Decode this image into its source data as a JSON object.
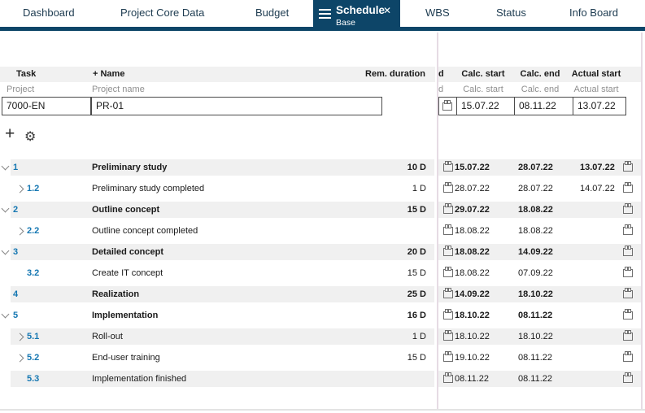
{
  "tabs": [
    {
      "label": "Dashboard"
    },
    {
      "label": "Project Core Data"
    },
    {
      "label": "Budget"
    },
    {
      "label": "Schedule",
      "sublabel": "Base",
      "active": true
    },
    {
      "label": "WBS"
    },
    {
      "label": "Status"
    },
    {
      "label": "Info Board"
    }
  ],
  "icons": {
    "close": "✕",
    "add": "+",
    "settings": "⚙"
  },
  "header": {
    "task": "Task",
    "name": "+  Name",
    "rem_duration": "Rem. duration",
    "calc_start": "Calc. start",
    "calc_end": "Calc. end",
    "actual_start": "Actual start",
    "clipped_fragment": "d",
    "sub": {
      "task": "Project",
      "name": "Project name",
      "calc_start": "Calc. start",
      "calc_end": "Calc. end",
      "actual_start": "Actual start",
      "clipped_fragment": "d"
    }
  },
  "project_row": {
    "id": "7000-EN",
    "name": "PR-01",
    "calc_start": "15.07.22",
    "calc_end": "08.11.22",
    "actual_start": "13.07.22"
  },
  "tasks": [
    {
      "num": "1",
      "name": "Preliminary study",
      "duration": "10 D",
      "calc_start": "15.07.22",
      "calc_end": "28.07.22",
      "actual_start": "13.07.22",
      "bold": true,
      "level": 0,
      "chevron": "down",
      "shaded": true
    },
    {
      "num": "1.2",
      "name": "Preliminary study completed",
      "duration": "1 D",
      "calc_start": "28.07.22",
      "calc_end": "28.07.22",
      "actual_start": "14.07.22",
      "bold": false,
      "level": 1,
      "chevron": "right",
      "shaded": false
    },
    {
      "num": "2",
      "name": "Outline concept",
      "duration": "15 D",
      "calc_start": "29.07.22",
      "calc_end": "18.08.22",
      "actual_start": "",
      "bold": true,
      "level": 0,
      "chevron": "down",
      "shaded": true
    },
    {
      "num": "2.2",
      "name": "Outline concept completed",
      "duration": "",
      "calc_start": "18.08.22",
      "calc_end": "18.08.22",
      "actual_start": "",
      "bold": false,
      "level": 1,
      "chevron": "right",
      "shaded": false
    },
    {
      "num": "3",
      "name": "Detailed concept",
      "duration": "20 D",
      "calc_start": "18.08.22",
      "calc_end": "14.09.22",
      "actual_start": "",
      "bold": true,
      "level": 0,
      "chevron": "down",
      "shaded": true
    },
    {
      "num": "3.2",
      "name": "Create IT concept",
      "duration": "15 D",
      "calc_start": "18.08.22",
      "calc_end": "07.09.22",
      "actual_start": "",
      "bold": false,
      "level": 1,
      "chevron": "none",
      "shaded": false
    },
    {
      "num": "4",
      "name": "Realization",
      "duration": "25 D",
      "calc_start": "14.09.22",
      "calc_end": "18.10.22",
      "actual_start": "",
      "bold": true,
      "level": 0,
      "chevron": "none",
      "shaded": true
    },
    {
      "num": "5",
      "name": "Implementation",
      "duration": "16 D",
      "calc_start": "18.10.22",
      "calc_end": "08.11.22",
      "actual_start": "",
      "bold": true,
      "level": 0,
      "chevron": "down",
      "shaded": false
    },
    {
      "num": "5.1",
      "name": "Roll-out",
      "duration": "1 D",
      "calc_start": "18.10.22",
      "calc_end": "18.10.22",
      "actual_start": "",
      "bold": false,
      "level": 1,
      "chevron": "right",
      "shaded": true
    },
    {
      "num": "5.2",
      "name": "End-user training",
      "duration": "15 D",
      "calc_start": "19.10.22",
      "calc_end": "08.11.22",
      "actual_start": "",
      "bold": false,
      "level": 1,
      "chevron": "right",
      "shaded": false
    },
    {
      "num": "5.3",
      "name": "Implementation finished",
      "duration": "",
      "calc_start": "08.11.22",
      "calc_end": "08.11.22",
      "actual_start": "",
      "bold": false,
      "level": 1,
      "chevron": "none",
      "shaded": true
    }
  ],
  "colors": {
    "accent_navy": "#0d4568",
    "task_number_blue": "#1577b2",
    "row_stripe": "#f0f0f0",
    "splitter_pink": "#e6dbe4"
  }
}
